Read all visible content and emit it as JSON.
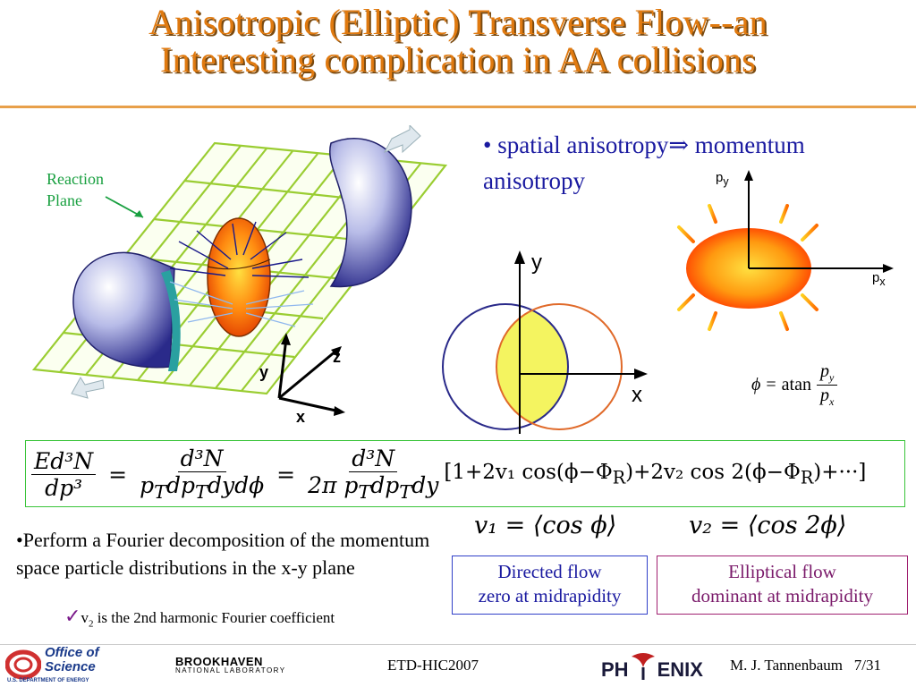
{
  "slide": {
    "title_line1": "Anisotropic (Elliptic) Transverse Flow--an",
    "title_line2": "Interesting complication in AA collisions"
  },
  "reaction_plane": {
    "label_line1": "Reaction",
    "label_line2": "Plane"
  },
  "collision_axes": {
    "x": "x",
    "y": "y",
    "z": "z"
  },
  "bullet1": {
    "bullet": "•",
    "text_a": "spatial anisotropy",
    "arrow": "⇒",
    "text_b": "momentum",
    "text_c": "anisotropy"
  },
  "overlap_axes": {
    "x": "x",
    "y": "y"
  },
  "momentum_axes": {
    "px_base": "p",
    "px_sub": "x",
    "py_base": "p",
    "py_sub": "y"
  },
  "phi_eq": {
    "lhs": "ϕ",
    "eq": "=",
    "func": "atan",
    "num_base": "p",
    "num_sub": "y",
    "den_base": "p",
    "den_sub": "x"
  },
  "main_equation": {
    "t1_num": "Ed³N",
    "t1_den": "dp³",
    "eq1": "=",
    "t2_num": "d³N",
    "t2_den": "p<sub>T</sub>dp<sub>T</sub>dydϕ",
    "eq2": "=",
    "t3_num": "d³N",
    "t3_den": "2π p<sub>T</sub>dp<sub>T</sub>dy",
    "series": "[1+2v₁ cos(ϕ−Φ<sub>R</sub>)+2v₂ cos 2(ϕ−Φ<sub>R</sub>)+···]"
  },
  "v_defs": {
    "v1": "v₁ = ⟨cos ϕ⟩",
    "v2": "v₂ = ⟨cos 2ϕ⟩"
  },
  "fourier": {
    "bullet": "•",
    "text": "Perform a Fourier decomposition of the momentum space particle distributions in the x-y plane"
  },
  "check_note": {
    "check": "✓",
    "v": "v",
    "sub": "2",
    "rest": " is the 2nd harmonic Fourier coefficient"
  },
  "directed_box": {
    "line1": "Directed flow",
    "line2": "zero at midrapidity"
  },
  "elliptic_box": {
    "line1": "Elliptical flow",
    "line2": "dominant at midrapidity"
  },
  "footer": {
    "office_line1": "Office of",
    "office_line2": "Science",
    "office_line3": "U.S. DEPARTMENT OF ENERGY",
    "bnl_line1": "BROOKHAVEN",
    "bnl_line2": "NATIONAL LABORATORY",
    "conference": "ETD-HIC2007",
    "phenix_a": "PH",
    "phenix_b": "ENIX",
    "author": "M. J. Tannenbaum",
    "page": "7/31"
  },
  "colors": {
    "title": "#e07a10",
    "accent_blue": "#1a1aa0",
    "grid_green": "#9acd32",
    "box_green": "#3ac43a",
    "elliptic_purple": "#7a1a6a"
  }
}
